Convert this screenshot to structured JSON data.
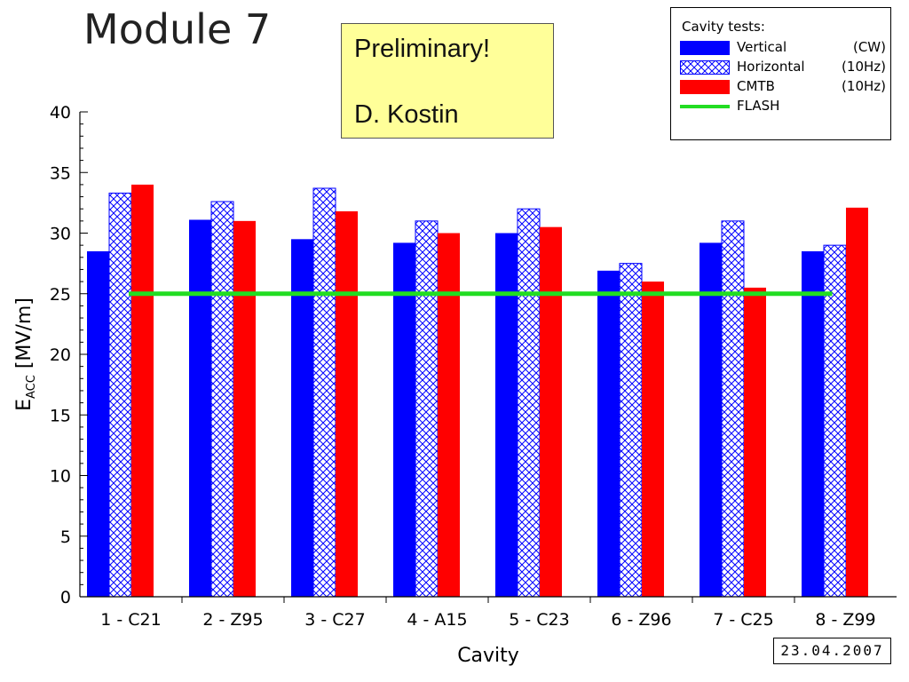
{
  "title": "Module 7",
  "note": {
    "line1": "Preliminary!",
    "line2": "D. Kostin"
  },
  "legend": {
    "title": "Cavity tests:",
    "items": [
      {
        "label": "Vertical",
        "note": "(CW)"
      },
      {
        "label": "Horizontal",
        "note": "(10Hz)"
      },
      {
        "label": "CMTB",
        "note": "(10Hz)"
      },
      {
        "label": "FLASH",
        "note": ""
      }
    ]
  },
  "date": "23.04.2007",
  "chart_data": {
    "type": "bar",
    "title": "Module 7",
    "xlabel": "Cavity",
    "ylabel_main": "E",
    "ylabel_sub": "ACC",
    "ylabel_unit": "[MV/m]",
    "ylim": [
      0,
      40
    ],
    "yticks": [
      "0",
      "5",
      "10",
      "15",
      "20",
      "25",
      "30",
      "35",
      "40"
    ],
    "categories": [
      "1 - C21",
      "2 - Z95",
      "3 - C27",
      "4 - A15",
      "5 - C23",
      "6 - Z96",
      "7 - C25",
      "8 - Z99"
    ],
    "series": [
      {
        "name": "Vertical",
        "color": "#0000ff",
        "pattern": "solid",
        "values": [
          28.5,
          31.1,
          29.5,
          29.2,
          30.0,
          26.9,
          29.2,
          28.5
        ]
      },
      {
        "name": "Horizontal",
        "color": "#0000ff",
        "pattern": "crosshatch",
        "values": [
          33.3,
          32.6,
          33.7,
          31.0,
          32.0,
          27.5,
          31.0,
          29.0
        ]
      },
      {
        "name": "CMTB",
        "color": "#ff0000",
        "pattern": "solid",
        "values": [
          34.0,
          31.0,
          31.8,
          30.0,
          30.5,
          26.0,
          25.5,
          32.1
        ]
      }
    ],
    "reference_line": {
      "name": "FLASH",
      "value": 25,
      "color": "#22dd22"
    },
    "grid": false,
    "legend_position": "top-right"
  }
}
